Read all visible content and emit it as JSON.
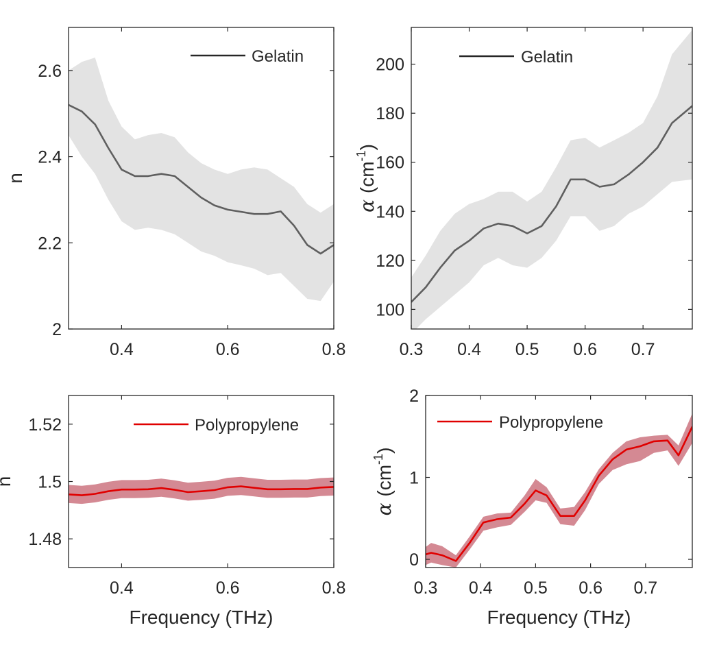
{
  "chart_data": [
    {
      "id": "gelatin-n",
      "type": "line",
      "xlim": [
        0.3,
        0.8
      ],
      "ylim": [
        2.0,
        2.7
      ],
      "xticks": [
        0.4,
        0.6,
        0.8
      ],
      "xtick_labels": [
        "0.4",
        "0.6",
        "0.8"
      ],
      "yticks": [
        2.0,
        2.2,
        2.4,
        2.6
      ],
      "ytick_labels": [
        "2",
        "2.2",
        "2.4",
        "2.6"
      ],
      "ylabel": "n",
      "xlabel": "",
      "legend": "Gelatin",
      "legend_loc": "top-right",
      "series": [
        {
          "name": "Gelatin",
          "color": "#5f5f5f",
          "band_color": "#e3e3e3",
          "band_opacity": 1,
          "x": [
            0.3,
            0.325,
            0.35,
            0.375,
            0.4,
            0.425,
            0.45,
            0.475,
            0.5,
            0.525,
            0.55,
            0.575,
            0.6,
            0.625,
            0.65,
            0.675,
            0.7,
            0.725,
            0.75,
            0.775,
            0.8
          ],
          "y": [
            2.52,
            2.505,
            2.475,
            2.42,
            2.37,
            2.355,
            2.355,
            2.36,
            2.355,
            2.33,
            2.305,
            2.287,
            2.277,
            2.272,
            2.267,
            2.267,
            2.273,
            2.24,
            2.195,
            2.175,
            2.195
          ],
          "lower": [
            2.45,
            2.4,
            2.36,
            2.3,
            2.25,
            2.23,
            2.235,
            2.23,
            2.22,
            2.2,
            2.18,
            2.17,
            2.155,
            2.148,
            2.14,
            2.125,
            2.13,
            2.1,
            2.07,
            2.065,
            2.11
          ],
          "upper": [
            2.6,
            2.62,
            2.63,
            2.53,
            2.47,
            2.44,
            2.45,
            2.455,
            2.445,
            2.41,
            2.385,
            2.37,
            2.36,
            2.37,
            2.375,
            2.37,
            2.35,
            2.33,
            2.29,
            2.27,
            2.29
          ]
        }
      ]
    },
    {
      "id": "gelatin-alpha",
      "type": "line",
      "xlim": [
        0.3,
        0.785
      ],
      "ylim": [
        92,
        215
      ],
      "xticks": [
        0.3,
        0.4,
        0.5,
        0.6,
        0.7
      ],
      "xtick_labels": [
        "0.3",
        "0.4",
        "0.5",
        "0.6",
        "0.7"
      ],
      "yticks": [
        100,
        120,
        140,
        160,
        180,
        200
      ],
      "ytick_labels": [
        "100",
        "120",
        "140",
        "160",
        "180",
        "200"
      ],
      "ylabel_symbol": "α",
      "ylabel": "(cm",
      "ylabel_sup": "-1",
      "ylabel_end": ")",
      "xlabel": "",
      "legend": "Gelatin",
      "legend_loc": "top-left",
      "series": [
        {
          "name": "Gelatin",
          "color": "#5f5f5f",
          "band_color": "#e3e3e3",
          "band_opacity": 1,
          "x": [
            0.3,
            0.325,
            0.35,
            0.375,
            0.4,
            0.425,
            0.45,
            0.475,
            0.5,
            0.525,
            0.55,
            0.575,
            0.6,
            0.625,
            0.65,
            0.675,
            0.7,
            0.725,
            0.75,
            0.785
          ],
          "y": [
            103,
            109,
            117,
            124,
            128,
            133,
            135,
            134,
            131,
            134,
            142,
            153,
            153,
            150,
            151,
            155,
            160,
            166,
            176,
            183
          ],
          "lower": [
            90,
            96,
            101,
            106,
            111,
            118,
            121,
            118,
            117,
            121,
            128,
            138,
            138,
            132,
            134,
            139,
            142,
            147,
            152,
            153
          ],
          "upper": [
            113,
            122,
            132,
            139,
            143,
            145,
            148,
            148,
            144,
            148,
            158,
            169,
            170,
            166,
            169,
            172,
            176,
            187,
            204,
            214
          ]
        }
      ]
    },
    {
      "id": "polypropylene-n",
      "type": "line",
      "xlim": [
        0.3,
        0.8
      ],
      "ylim": [
        1.47,
        1.53
      ],
      "xticks": [
        0.4,
        0.6,
        0.8
      ],
      "xtick_labels": [
        "0.4",
        "0.6",
        "0.8"
      ],
      "yticks": [
        1.48,
        1.5,
        1.52
      ],
      "ytick_labels": [
        "1.48",
        "1.5",
        "1.52"
      ],
      "ylabel": "n",
      "xlabel": "Frequency (THz)",
      "legend": "Polypropylene",
      "legend_loc": "top-right",
      "series": [
        {
          "name": "Polypropylene",
          "color": "#e00000",
          "band_color": "#b0283a",
          "band_opacity": 0.55,
          "x": [
            0.3,
            0.325,
            0.35,
            0.375,
            0.4,
            0.425,
            0.45,
            0.475,
            0.5,
            0.525,
            0.55,
            0.575,
            0.6,
            0.625,
            0.65,
            0.675,
            0.7,
            0.725,
            0.75,
            0.775,
            0.8
          ],
          "y": [
            1.4955,
            1.4952,
            1.4957,
            1.4966,
            1.4972,
            1.4972,
            1.4973,
            1.4977,
            1.4971,
            1.4963,
            1.4966,
            1.497,
            1.498,
            1.4983,
            1.4978,
            1.4973,
            1.4973,
            1.4974,
            1.4974,
            1.4979,
            1.4981
          ],
          "lower": [
            1.4925,
            1.4922,
            1.4927,
            1.4936,
            1.4942,
            1.4942,
            1.4943,
            1.4947,
            1.4941,
            1.4933,
            1.4936,
            1.494,
            1.495,
            1.4953,
            1.4948,
            1.4943,
            1.4943,
            1.4944,
            1.4944,
            1.4949,
            1.4951
          ],
          "upper": [
            1.4988,
            1.4985,
            1.499,
            1.4999,
            1.5005,
            1.5005,
            1.5006,
            1.501,
            1.5004,
            1.4996,
            1.4999,
            1.5003,
            1.5013,
            1.5016,
            1.5011,
            1.5006,
            1.5006,
            1.5007,
            1.5007,
            1.5012,
            1.5014
          ]
        }
      ]
    },
    {
      "id": "polypropylene-alpha",
      "type": "line",
      "xlim": [
        0.3,
        0.785
      ],
      "ylim": [
        -0.1,
        2.0
      ],
      "xticks": [
        0.3,
        0.4,
        0.5,
        0.6,
        0.7
      ],
      "xtick_labels": [
        "0.3",
        "0.4",
        "0.5",
        "0.6",
        "0.7"
      ],
      "yticks": [
        0,
        1,
        2
      ],
      "ytick_labels": [
        "0",
        "1",
        "2"
      ],
      "ylabel_symbol": "α",
      "ylabel": "(cm",
      "ylabel_sup": "-1",
      "ylabel_end": ")",
      "xlabel": "Frequency (THz)",
      "legend": "Polypropylene",
      "legend_loc": "top-left",
      "series": [
        {
          "name": "Polypropylene",
          "color": "#e00000",
          "band_color": "#b0283a",
          "band_opacity": 0.55,
          "x": [
            0.3,
            0.31,
            0.33,
            0.355,
            0.38,
            0.405,
            0.43,
            0.455,
            0.48,
            0.5,
            0.52,
            0.545,
            0.57,
            0.59,
            0.615,
            0.64,
            0.665,
            0.69,
            0.715,
            0.74,
            0.76,
            0.785
          ],
          "y": [
            0.06,
            0.08,
            0.05,
            -0.02,
            0.2,
            0.45,
            0.49,
            0.51,
            0.68,
            0.84,
            0.78,
            0.53,
            0.53,
            0.72,
            1.02,
            1.22,
            1.34,
            1.38,
            1.44,
            1.45,
            1.27,
            1.62
          ],
          "lower": [
            -0.07,
            -0.04,
            -0.07,
            -0.1,
            0.12,
            0.35,
            0.39,
            0.42,
            0.58,
            0.72,
            0.69,
            0.43,
            0.41,
            0.6,
            0.92,
            1.09,
            1.16,
            1.2,
            1.3,
            1.33,
            1.14,
            1.42
          ],
          "upper": [
            0.15,
            0.2,
            0.16,
            0.05,
            0.28,
            0.52,
            0.56,
            0.57,
            0.78,
            0.98,
            0.88,
            0.62,
            0.64,
            0.82,
            1.1,
            1.3,
            1.44,
            1.49,
            1.51,
            1.52,
            1.39,
            1.78
          ]
        }
      ]
    }
  ]
}
